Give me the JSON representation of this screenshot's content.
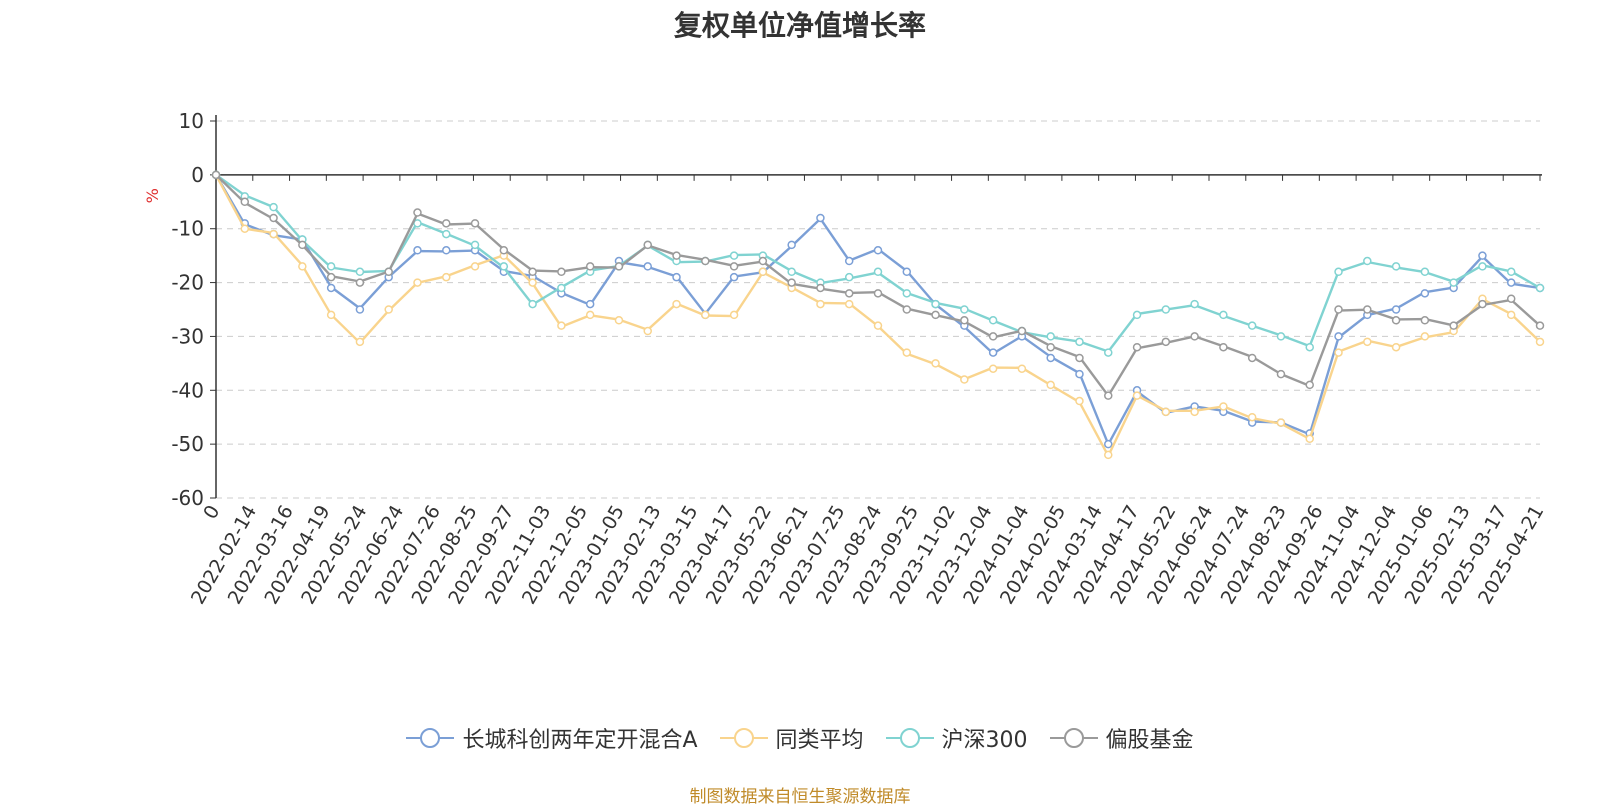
{
  "chart_data": {
    "type": "line",
    "title": "复权单位净值增长率",
    "ylabel": "%",
    "ylim": [
      -60,
      10
    ],
    "yticks": [
      10,
      0,
      -10,
      -20,
      -30,
      -40,
      -50,
      -60
    ],
    "grid": true,
    "legend_position": "bottom",
    "x_tick_labels": [
      "0",
      "2022-02-14",
      "2022-03-16",
      "2022-04-19",
      "2022-05-24",
      "2022-06-24",
      "2022-07-26",
      "2022-08-25",
      "2022-09-27",
      "2022-11-03",
      "2022-12-05",
      "2023-01-05",
      "2023-02-13",
      "2023-03-15",
      "2023-04-17",
      "2023-05-22",
      "2023-06-21",
      "2023-07-25",
      "2023-08-24",
      "2023-09-25",
      "2023-11-02",
      "2023-12-04",
      "2024-01-04",
      "2024-02-05",
      "2024-03-14",
      "2024-04-17",
      "2024-05-22",
      "2024-06-24",
      "2024-07-24",
      "2024-08-23",
      "2024-09-26",
      "2024-11-04",
      "2024-12-04",
      "2025-01-06",
      "2025-02-13",
      "2025-03-17",
      "2025-04-21"
    ],
    "series": [
      {
        "name": "长城科创两年定开混合A",
        "color": "#7b9fd6",
        "values": [
          0,
          -9,
          -11,
          -12,
          -21,
          -25,
          -19,
          -14,
          -14,
          -14,
          -18,
          -19,
          -22,
          -24,
          -16,
          -17,
          -19,
          -26,
          -19,
          -18,
          -13,
          -8,
          -16,
          -14,
          -18,
          -24,
          -28,
          -33,
          -30,
          -34,
          -37,
          -50,
          -40,
          -44,
          -43,
          -44,
          -46,
          -46,
          -48,
          -30,
          -26,
          -25,
          -22,
          -21,
          -15,
          -20,
          -21
        ]
      },
      {
        "name": "同类平均",
        "color": "#f9d48d",
        "values": [
          0,
          -10,
          -11,
          -17,
          -26,
          -31,
          -25,
          -20,
          -19,
          -17,
          -15,
          -20,
          -28,
          -26,
          -27,
          -29,
          -24,
          -26,
          -26,
          -18,
          -21,
          -24,
          -24,
          -28,
          -33,
          -35,
          -38,
          -36,
          -36,
          -39,
          -42,
          -52,
          -41,
          -44,
          -44,
          -43,
          -45,
          -46,
          -49,
          -33,
          -31,
          -32,
          -30,
          -29,
          -23,
          -26,
          -31
        ]
      },
      {
        "name": "沪深300",
        "color": "#80d3d1",
        "values": [
          0,
          -4,
          -6,
          -12,
          -17,
          -18,
          -18,
          -9,
          -11,
          -13,
          -17,
          -24,
          -21,
          -18,
          -17,
          -13,
          -16,
          -16,
          -15,
          -15,
          -18,
          -20,
          -19,
          -18,
          -22,
          -24,
          -25,
          -27,
          -29,
          -30,
          -31,
          -33,
          -26,
          -25,
          -24,
          -26,
          -28,
          -30,
          -32,
          -18,
          -16,
          -17,
          -18,
          -20,
          -17,
          -18,
          -21
        ]
      },
      {
        "name": "偏股基金",
        "color": "#9a9a9a",
        "values": [
          0,
          -5,
          -8,
          -13,
          -19,
          -20,
          -18,
          -7,
          -9,
          -9,
          -14,
          -18,
          -18,
          -17,
          -17,
          -13,
          -15,
          -16,
          -17,
          -16,
          -20,
          -21,
          -22,
          -22,
          -25,
          -26,
          -27,
          -30,
          -29,
          -32,
          -34,
          -41,
          -32,
          -31,
          -30,
          -32,
          -34,
          -37,
          -39,
          -25,
          -25,
          -27,
          -27,
          -28,
          -24,
          -23,
          -28
        ]
      }
    ],
    "source": "制图数据来自恒生聚源数据库"
  }
}
